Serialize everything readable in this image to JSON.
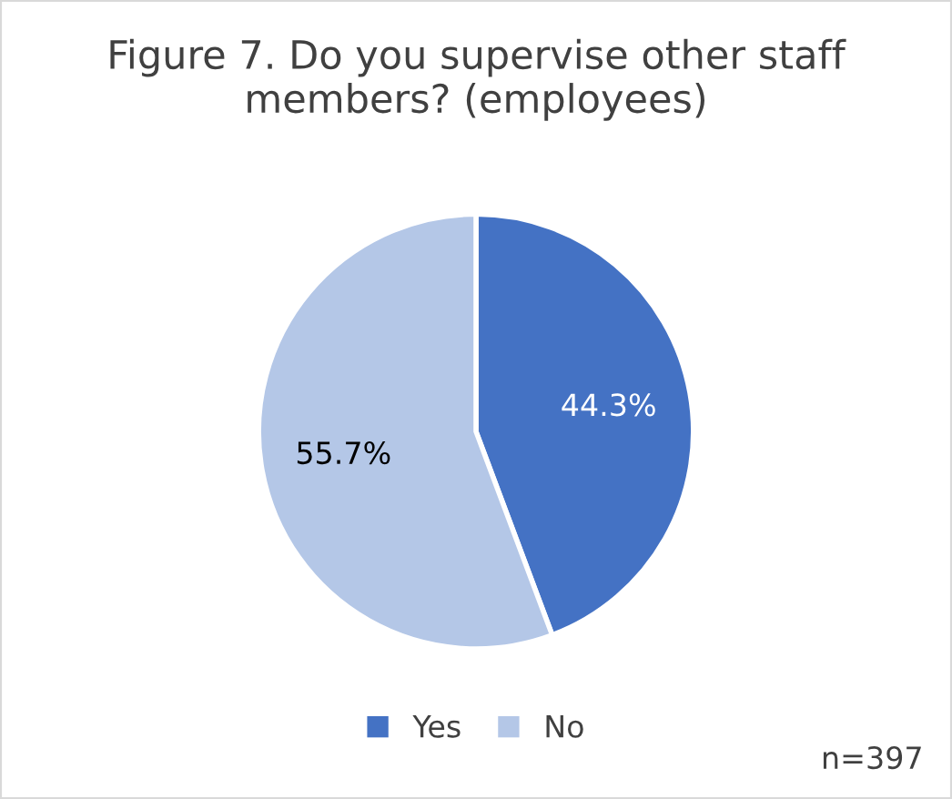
{
  "chart_data": {
    "type": "pie",
    "title": "Figure 7. Do you supervise other staff members? (employees)",
    "categories": [
      "Yes",
      "No"
    ],
    "values": [
      44.3,
      55.7
    ],
    "colors": [
      "#4472c4",
      "#b4c7e7"
    ],
    "value_labels": [
      "44.3%",
      "55.7%"
    ],
    "legend": "bottom",
    "annotations": [
      "n=397"
    ]
  }
}
